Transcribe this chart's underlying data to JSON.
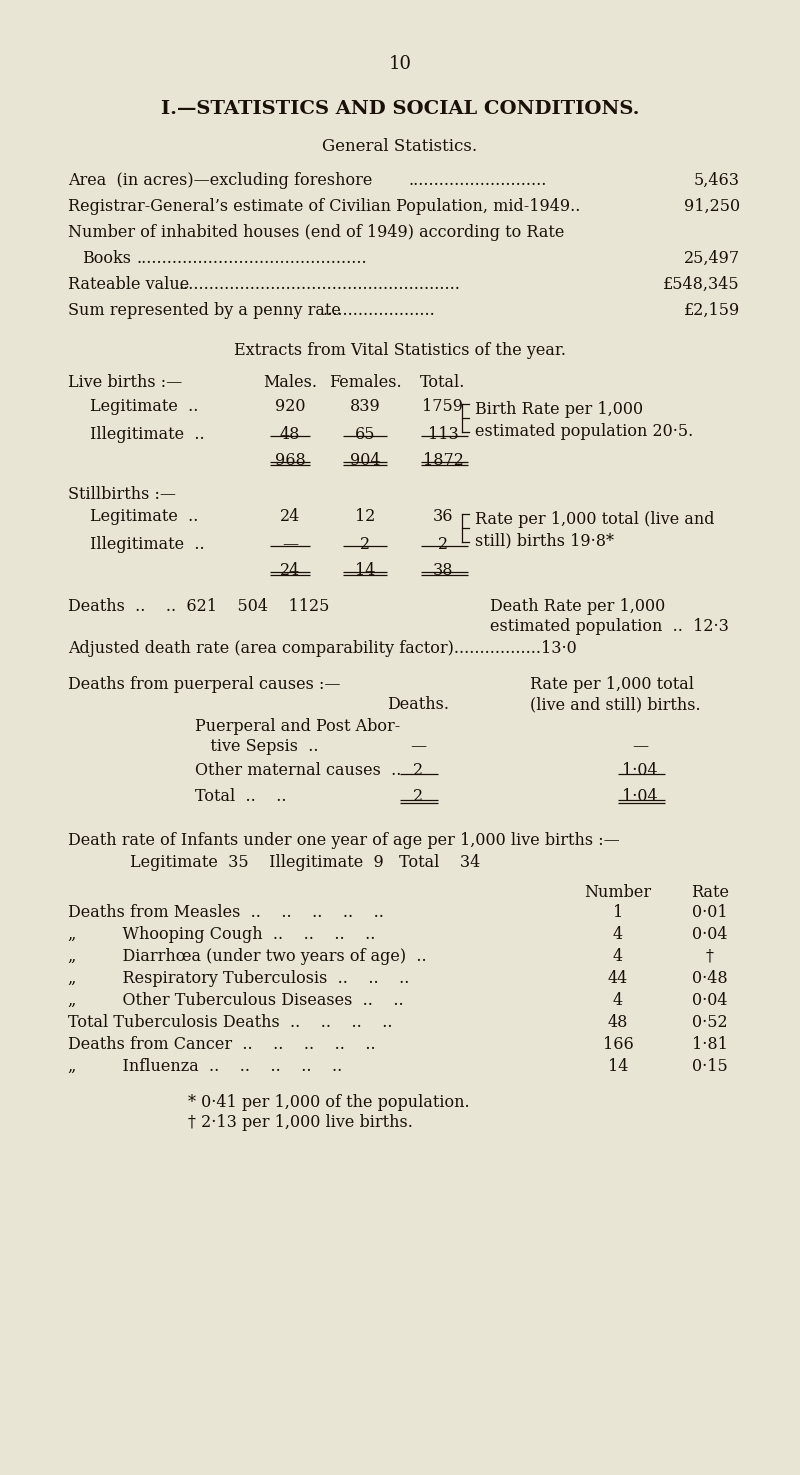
{
  "bg_color": "#e8e5d5",
  "text_color": "#1a1008",
  "page_number": "10",
  "main_title": "I.—STATISTICS AND SOCIAL CONDITIONS.",
  "sub_title": "General Statistics.",
  "vital_title": "Extracts from Vital Statistics of the year.",
  "footnotes": [
    "* 0·41 per 1,000 of the population.",
    "† 2·13 per 1,000 live births."
  ]
}
